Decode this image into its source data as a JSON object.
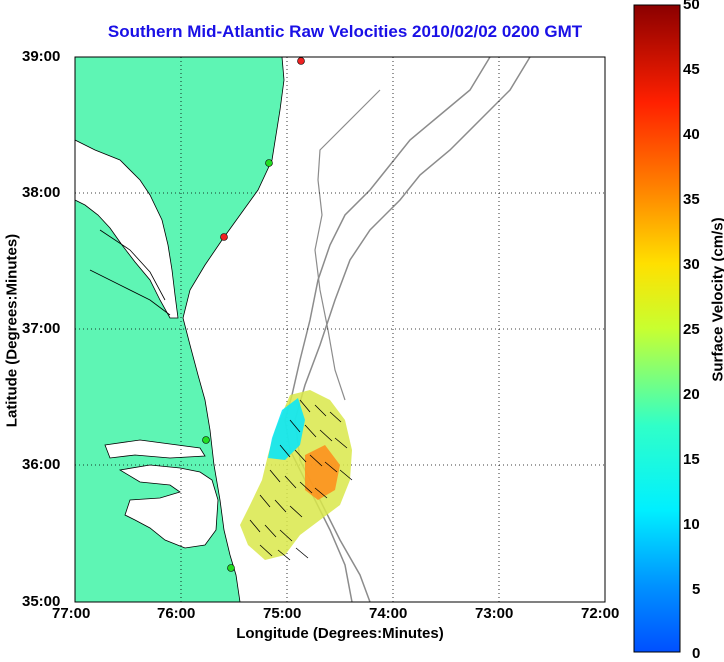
{
  "title": "Southern Mid-Atlantic Raw Velocities 2010/02/02 0200 GMT",
  "xaxis": {
    "label": "Longitude (Degrees:Minutes)",
    "ticks": [
      "77:00",
      "76:00",
      "75:00",
      "74:00",
      "73:00",
      "72:00"
    ],
    "range_deg_west": [
      77,
      72
    ]
  },
  "yaxis": {
    "label": "Latitude (Degrees:Minutes)",
    "ticks": [
      "39:00",
      "38:00",
      "37:00",
      "36:00",
      "35:00"
    ],
    "range_deg_north": [
      35,
      39
    ]
  },
  "colorbar": {
    "label": "Surface Velocity (cm/s)",
    "ticks": [
      "50",
      "45",
      "40",
      "35",
      "30",
      "25",
      "20",
      "15",
      "10",
      "5",
      "0"
    ],
    "range": [
      0,
      50
    ],
    "colormap": "jet"
  },
  "colors": {
    "land": "#5ef5b4",
    "coastline": "#000000",
    "bathymetry": "#8c8c8c",
    "title": "#1a10e6",
    "station_active": "#22dd22",
    "station_inactive": "#ee2222"
  },
  "grid": "dotted",
  "stations": [
    {
      "lon": 74.88,
      "lat": 38.95,
      "status": "inactive"
    },
    {
      "lon": 75.18,
      "lat": 38.22,
      "status": "active"
    },
    {
      "lon": 75.52,
      "lat": 37.68,
      "status": "inactive"
    },
    {
      "lon": 75.7,
      "lat": 36.18,
      "status": "active"
    },
    {
      "lon": 75.5,
      "lat": 35.25,
      "status": "active"
    }
  ]
}
